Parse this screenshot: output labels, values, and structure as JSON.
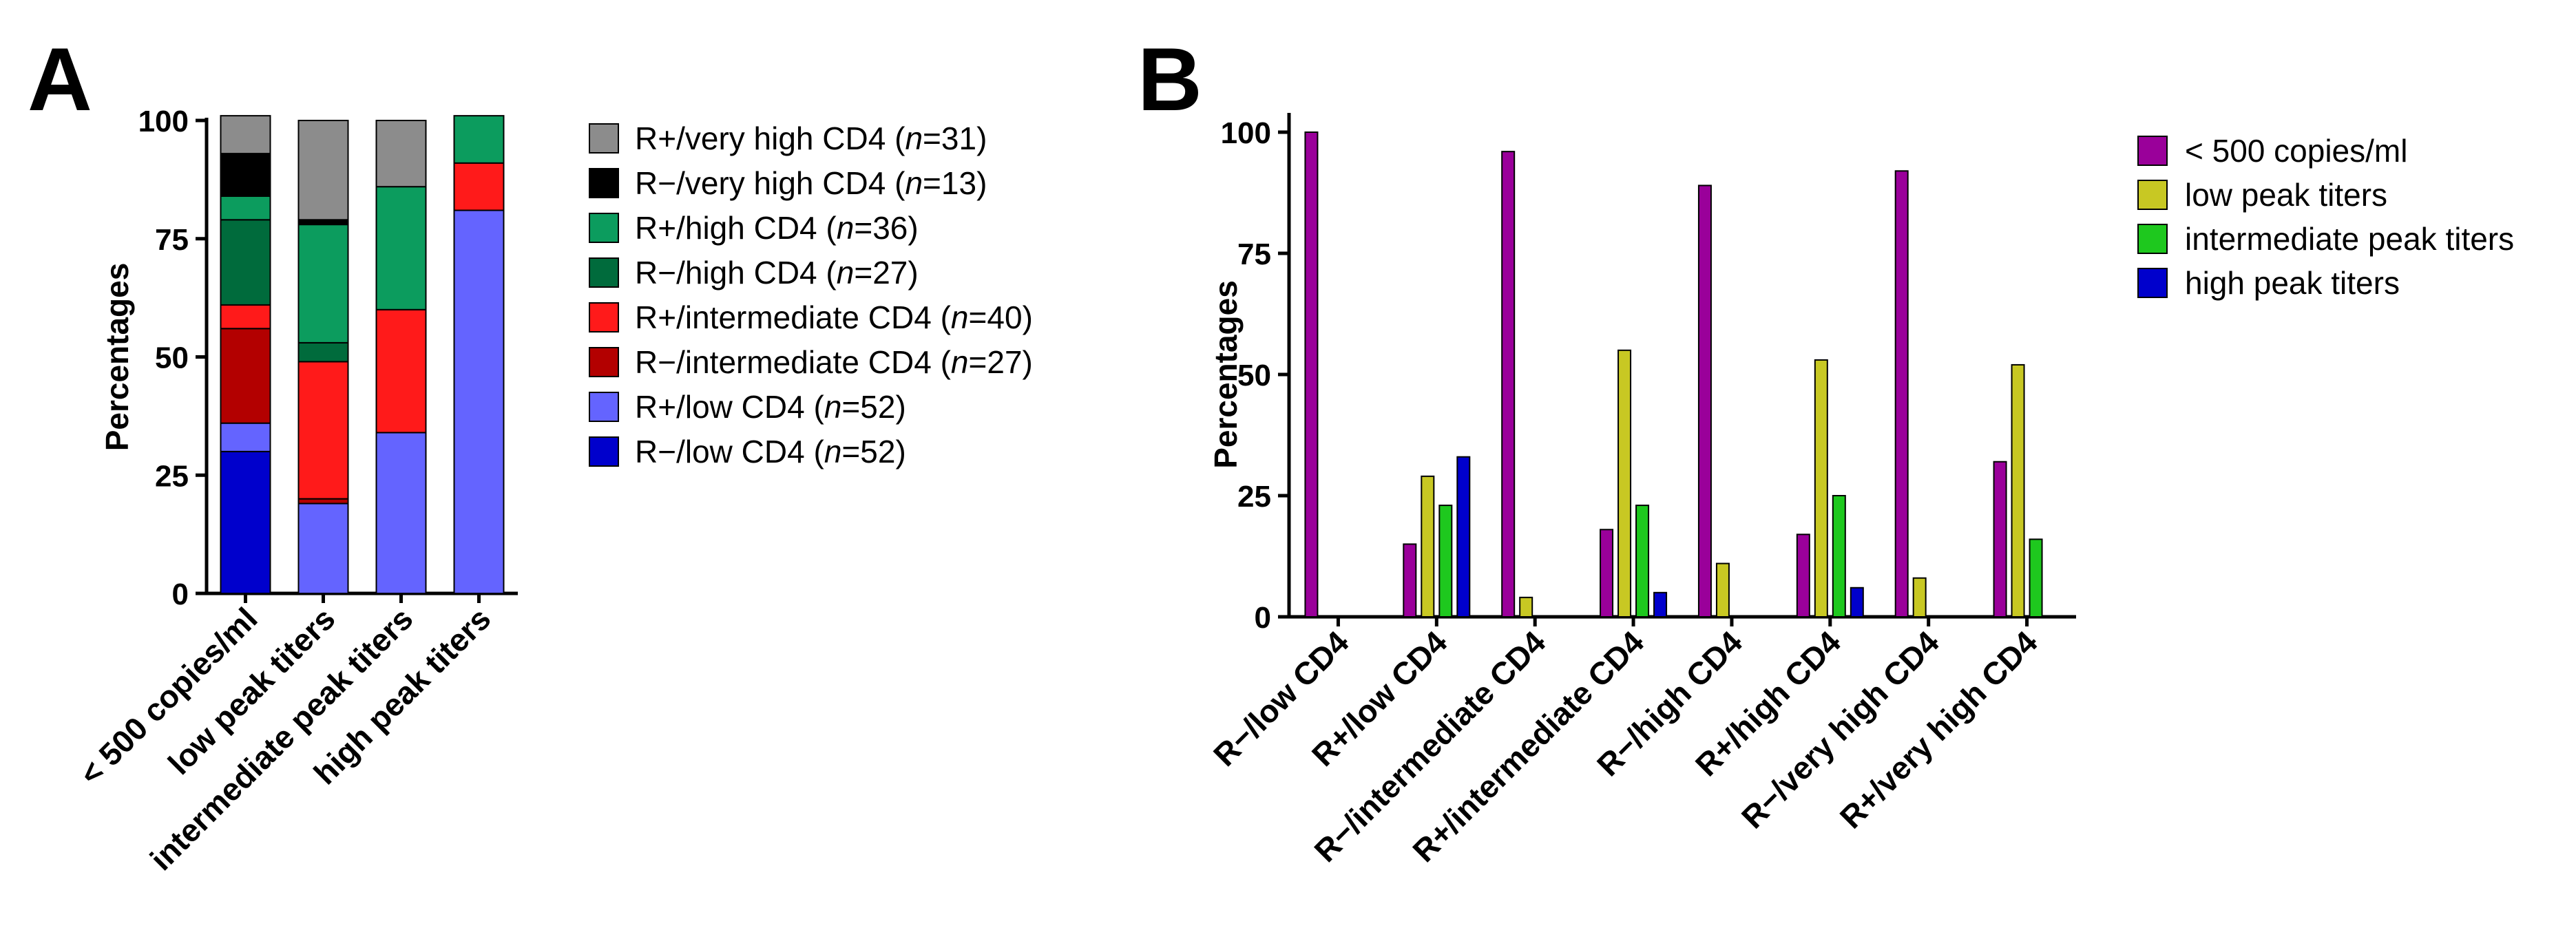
{
  "panel_labels": [
    "A",
    "B"
  ],
  "chart_data": [
    {
      "type": "bar",
      "stacked": true,
      "panel": "A",
      "title": "",
      "xlabel": "",
      "ylabel": "Percentages",
      "ylim": [
        0,
        100
      ],
      "yticks": [
        "0",
        "25",
        "50",
        "75",
        "100"
      ],
      "categories": [
        "< 500 copies/ml",
        "low peak titers",
        "intermediate peak titers",
        "high peak titers"
      ],
      "series": [
        {
          "name": "R−/low CD4",
          "n": "52",
          "color": "#0000cc",
          "values": [
            30,
            0,
            0,
            0
          ]
        },
        {
          "name": "R+/low CD4",
          "n": "52",
          "color": "#6464ff",
          "values": [
            6,
            19,
            34,
            81
          ]
        },
        {
          "name": "R−/intermediate CD4 (",
          "n": "27",
          "color": "#b30000",
          "values": [
            20,
            1,
            0,
            0
          ]
        },
        {
          "name": "R+/intermediate CD4",
          "n": "40",
          "color": "#ff1a1a",
          "values": [
            5,
            29,
            26,
            10
          ]
        },
        {
          "name": "R−/high CD4",
          "n": "27",
          "color": "#006b3c",
          "values": [
            18,
            4,
            0,
            0
          ]
        },
        {
          "name": "R+/high CD4",
          "n": "36",
          "color": "#0c9c5e",
          "values": [
            5,
            25,
            26,
            10
          ]
        },
        {
          "name": "R−/very high CD4",
          "n": "13",
          "color": "#000000",
          "values": [
            9,
            1,
            0,
            0
          ]
        },
        {
          "name": "R+/very high CD4",
          "n": "31",
          "color": "#8c8c8c",
          "values": [
            8,
            21,
            14,
            0
          ]
        }
      ],
      "legend_order": [
        7,
        6,
        5,
        4,
        3,
        2,
        1,
        0
      ],
      "legend_position": "right"
    },
    {
      "type": "bar",
      "stacked": false,
      "panel": "B",
      "title": "",
      "xlabel": "",
      "ylabel": "Percentages",
      "ylim": [
        0,
        100
      ],
      "yticks": [
        "0",
        "25",
        "50",
        "75",
        "100"
      ],
      "categories": [
        "R−/low CD4",
        "R+/low CD4",
        "R−/intermediate CD4",
        "R+/intermediate CD4",
        "R−/high CD4",
        "R+/high CD4",
        "R−/very high CD4",
        "R+/very high CD4"
      ],
      "series": [
        {
          "name": "< 500 copies/ml",
          "color": "#9a009a",
          "values": [
            100,
            15,
            96,
            18,
            89,
            17,
            92,
            32
          ]
        },
        {
          "name": "low peak titers",
          "color": "#c8c823",
          "values": [
            0,
            29,
            4,
            55,
            11,
            53,
            8,
            52
          ]
        },
        {
          "name": "intermediate peak titers",
          "color": "#1ec81e",
          "values": [
            0,
            23,
            0,
            23,
            0,
            25,
            0,
            16
          ]
        },
        {
          "name": "high peak titers",
          "color": "#0000cc",
          "values": [
            0,
            33,
            0,
            5,
            0,
            6,
            0,
            0
          ]
        }
      ],
      "legend_position": "right"
    }
  ]
}
